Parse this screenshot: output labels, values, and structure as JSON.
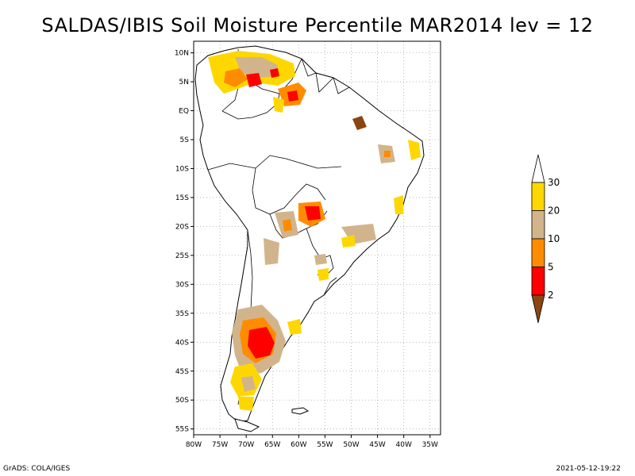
{
  "title": "SALDAS/IBIS Soil Moisture Percentile MAR2014 lev = 12",
  "footer": {
    "left": "GrADS: COLA/IGES",
    "right": "2021-05-12-19:22"
  },
  "map": {
    "lon_range": [
      -80,
      -33
    ],
    "lat_range": [
      -56,
      12
    ],
    "lat_ticks": [
      "10N",
      "5N",
      "EQ",
      "5S",
      "10S",
      "15S",
      "20S",
      "25S",
      "30S",
      "35S",
      "40S",
      "45S",
      "50S",
      "55S"
    ],
    "lon_ticks": [
      "80W",
      "75W",
      "70W",
      "65W",
      "60W",
      "55W",
      "50W",
      "45W",
      "40W",
      "35W"
    ]
  },
  "legend": {
    "thresholds": [
      "2",
      "5",
      "10",
      "20",
      "30"
    ],
    "colors": {
      "below_2": "#8b4513",
      "2_5": "#ff0000",
      "5_10": "#ff8c00",
      "10_20": "#d2b48c",
      "20_30": "#ffd700",
      "above_30": "#ffffff"
    }
  },
  "colors": {
    "frame": "#000000",
    "grid": "#aaaaaa",
    "land_outline": "#000000"
  }
}
